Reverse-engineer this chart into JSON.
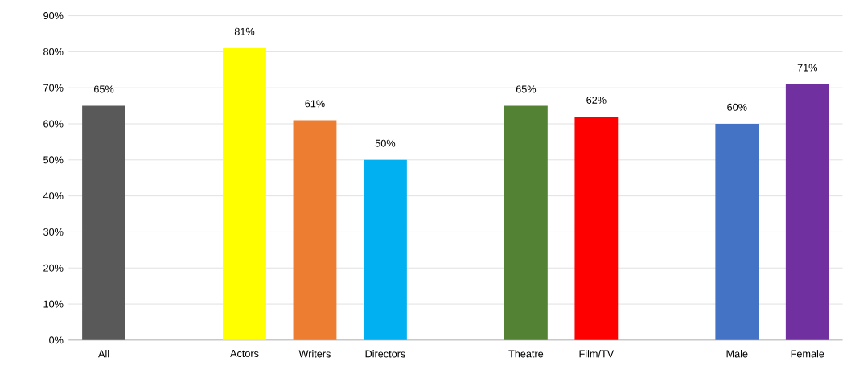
{
  "chart_data": {
    "type": "bar",
    "categories": [
      "All",
      null,
      "Actors",
      "Writers",
      "Directors",
      null,
      "Theatre",
      "Film/TV",
      null,
      "Male",
      "Female"
    ],
    "values": [
      65,
      null,
      81,
      61,
      50,
      null,
      65,
      62,
      null,
      60,
      71
    ],
    "colors": [
      "#595959",
      null,
      "#ffff00",
      "#ed7d31",
      "#00b0f0",
      null,
      "#548235",
      "#ff0000",
      null,
      "#4472c4",
      "#7030a0"
    ],
    "value_labels": [
      "65%",
      null,
      "81%",
      "61%",
      "50%",
      null,
      "65%",
      "62%",
      null,
      "60%",
      "71%"
    ],
    "ylim": [
      0,
      90
    ],
    "yticks": [
      {
        "value": 0,
        "label": "0%"
      },
      {
        "value": 10,
        "label": "10%"
      },
      {
        "value": 20,
        "label": "20%"
      },
      {
        "value": 30,
        "label": "30%"
      },
      {
        "value": 40,
        "label": "40%"
      },
      {
        "value": 50,
        "label": "50%"
      },
      {
        "value": 60,
        "label": "60%"
      },
      {
        "value": 70,
        "label": "70%"
      },
      {
        "value": 80,
        "label": "80%"
      },
      {
        "value": 90,
        "label": "90%"
      }
    ],
    "grid": "y"
  }
}
